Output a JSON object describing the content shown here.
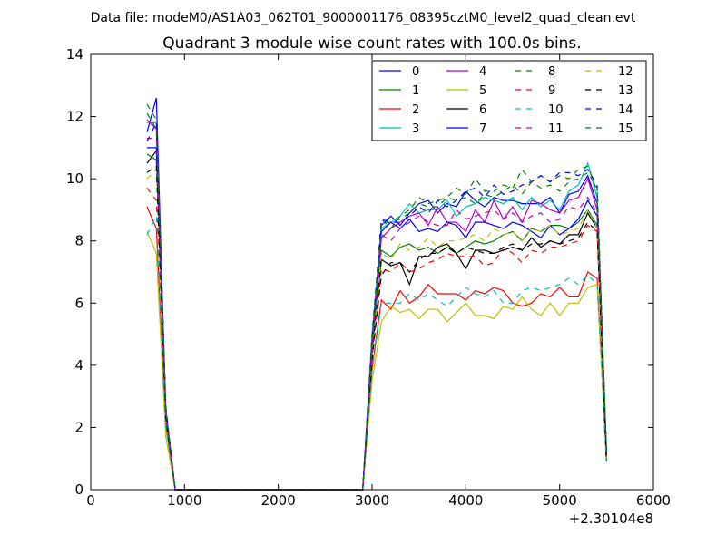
{
  "suptitle": "Data file: modeM0/AS1A03_062T01_9000001176_08395cztM0_level2_quad_clean.evt",
  "chart_data": {
    "type": "line",
    "title": "Quadrant 3 module wise count rates with 100.0s bins.",
    "xlabel": "",
    "ylabel": "",
    "x_offset_label": "+2.30104e8",
    "xlim": [
      0,
      6000
    ],
    "ylim": [
      0,
      14
    ],
    "xticks": [
      0,
      1000,
      2000,
      3000,
      4000,
      5000,
      6000
    ],
    "yticks": [
      0,
      2,
      4,
      6,
      8,
      10,
      12,
      14
    ],
    "grid": false,
    "legend_position": "top-right",
    "x": [
      600,
      700,
      800,
      900,
      1000,
      1100,
      1200,
      1300,
      1400,
      1500,
      1600,
      1700,
      1800,
      1900,
      2000,
      2100,
      2200,
      2300,
      2400,
      2500,
      2600,
      2700,
      2800,
      2900,
      3000,
      3100,
      3200,
      3300,
      3400,
      3500,
      3600,
      3700,
      3800,
      3900,
      4000,
      4100,
      4200,
      4300,
      4400,
      4500,
      4600,
      4700,
      4800,
      4900,
      5000,
      5100,
      5200,
      5300,
      5400,
      5500
    ],
    "series": [
      {
        "name": "0",
        "color": "#0000ff",
        "dash": "solid",
        "values": [
          11.5,
          12.6,
          2.5,
          0,
          0,
          0,
          0,
          0,
          0,
          0,
          0,
          0,
          0,
          0,
          0,
          0,
          0,
          0,
          0,
          0,
          0,
          0,
          0,
          0,
          4.7,
          8.5,
          8.8,
          8.5,
          8.9,
          9.2,
          9.3,
          8.9,
          9.2,
          9.1,
          9.6,
          9.3,
          9.1,
          9.4,
          9.3,
          9.3,
          9.2,
          9.2,
          9.2,
          9.4,
          8.9,
          9.5,
          9.6,
          10.1,
          9.2,
          1.2
        ]
      },
      {
        "name": "1",
        "color": "#008000",
        "dash": "solid",
        "values": [
          10.8,
          10.6,
          2.4,
          0,
          0,
          0,
          0,
          0,
          0,
          0,
          0,
          0,
          0,
          0,
          0,
          0,
          0,
          0,
          0,
          0,
          0,
          0,
          0,
          0,
          4.6,
          7.7,
          7.5,
          7.8,
          7.9,
          7.7,
          7.8,
          7.6,
          7.8,
          7.6,
          7.8,
          8.0,
          7.9,
          8.0,
          8.2,
          8.3,
          8.0,
          8.4,
          8.3,
          8.5,
          8.5,
          8.4,
          8.6,
          9.0,
          8.5,
          1.1
        ]
      },
      {
        "name": "2",
        "color": "#ff0000",
        "dash": "solid",
        "values": [
          9.1,
          8.4,
          2.1,
          0,
          0,
          0,
          0,
          0,
          0,
          0,
          0,
          0,
          0,
          0,
          0,
          0,
          0,
          0,
          0,
          0,
          0,
          0,
          0,
          0,
          3.9,
          6.1,
          5.8,
          6.4,
          6.0,
          6.2,
          6.6,
          6.3,
          6.3,
          6.3,
          6.1,
          6.4,
          6.3,
          6.5,
          6.4,
          6.0,
          5.9,
          6.0,
          6.3,
          6.2,
          6.5,
          6.2,
          6.2,
          7.0,
          6.8,
          1.0
        ]
      },
      {
        "name": "3",
        "color": "#00bfbf",
        "dash": "solid",
        "values": [
          11.8,
          11.8,
          2.6,
          0,
          0,
          0,
          0,
          0,
          0,
          0,
          0,
          0,
          0,
          0,
          0,
          0,
          0,
          0,
          0,
          0,
          0,
          0,
          0,
          0,
          5.0,
          8.4,
          8.6,
          8.8,
          9.2,
          8.9,
          9.0,
          9.0,
          9.3,
          8.8,
          9.1,
          9.2,
          9.4,
          9.3,
          9.2,
          9.4,
          9.0,
          9.4,
          9.1,
          9.3,
          9.0,
          9.6,
          9.8,
          10.5,
          9.4,
          1.3
        ]
      },
      {
        "name": "4",
        "color": "#bf00bf",
        "dash": "solid",
        "values": [
          11.9,
          11.6,
          2.6,
          0,
          0,
          0,
          0,
          0,
          0,
          0,
          0,
          0,
          0,
          0,
          0,
          0,
          0,
          0,
          0,
          0,
          0,
          0,
          0,
          0,
          4.8,
          8.1,
          8.4,
          8.6,
          8.8,
          8.9,
          8.5,
          9.1,
          8.6,
          8.6,
          8.3,
          9.0,
          8.6,
          9.3,
          8.7,
          9.1,
          8.6,
          9.3,
          9.2,
          9.0,
          8.9,
          9.3,
          9.4,
          10.0,
          9.0,
          1.2
        ]
      },
      {
        "name": "5",
        "color": "#bfbf00",
        "dash": "solid",
        "values": [
          8.3,
          7.6,
          1.7,
          0,
          0,
          0,
          0,
          0,
          0,
          0,
          0,
          0,
          0,
          0,
          0,
          0,
          0,
          0,
          0,
          0,
          0,
          0,
          0,
          0,
          3.5,
          5.4,
          5.9,
          5.7,
          5.8,
          5.5,
          5.8,
          5.8,
          5.4,
          5.7,
          6.0,
          5.6,
          5.6,
          5.5,
          5.9,
          5.8,
          6.2,
          5.8,
          5.6,
          6.0,
          5.6,
          6.0,
          6.0,
          6.5,
          6.6,
          0.9
        ]
      },
      {
        "name": "6",
        "color": "#000000",
        "dash": "solid",
        "values": [
          10.5,
          10.9,
          2.4,
          0,
          0,
          0,
          0,
          0,
          0,
          0,
          0,
          0,
          0,
          0,
          0,
          0,
          0,
          0,
          0,
          0,
          0,
          0,
          0,
          0,
          4.4,
          7.4,
          7.2,
          7.3,
          6.6,
          7.5,
          7.5,
          7.8,
          7.9,
          7.6,
          7.1,
          7.7,
          7.7,
          7.6,
          7.7,
          7.8,
          7.7,
          8.1,
          7.8,
          8.0,
          7.9,
          8.2,
          8.2,
          8.9,
          8.4,
          0.9
        ]
      },
      {
        "name": "7",
        "color": "#0000ff",
        "dash": "solid",
        "values": [
          11.0,
          11.0,
          2.5,
          0,
          0,
          0,
          0,
          0,
          0,
          0,
          0,
          0,
          0,
          0,
          0,
          0,
          0,
          0,
          0,
          0,
          0,
          0,
          0,
          0,
          4.7,
          8.3,
          8.6,
          8.4,
          8.7,
          8.3,
          8.4,
          8.3,
          8.6,
          8.5,
          8.1,
          8.6,
          8.6,
          8.5,
          8.4,
          8.6,
          8.5,
          8.3,
          8.1,
          8.5,
          8.2,
          8.4,
          8.7,
          9.3,
          8.8,
          1.1
        ]
      },
      {
        "name": "8",
        "color": "#008000",
        "dash": "dashed",
        "values": [
          12.4,
          11.9,
          2.7,
          0,
          0,
          0,
          0,
          0,
          0,
          0,
          0,
          0,
          0,
          0,
          0,
          0,
          0,
          0,
          0,
          0,
          0,
          0,
          0,
          0,
          5.0,
          8.7,
          8.4,
          8.8,
          9.0,
          9.4,
          9.2,
          9.3,
          9.4,
          9.7,
          9.5,
          10.0,
          9.6,
          9.6,
          9.8,
          9.7,
          10.3,
          9.9,
          10.1,
          9.9,
          10.1,
          10.0,
          10.3,
          10.4,
          9.6,
          1.3
        ]
      },
      {
        "name": "9",
        "color": "#ff0000",
        "dash": "dashed",
        "values": [
          9.7,
          9.3,
          2.2,
          0,
          0,
          0,
          0,
          0,
          0,
          0,
          0,
          0,
          0,
          0,
          0,
          0,
          0,
          0,
          0,
          0,
          0,
          0,
          0,
          0,
          4.2,
          7.1,
          7.0,
          7.3,
          7.0,
          7.1,
          7.3,
          7.4,
          7.6,
          7.5,
          7.5,
          7.5,
          7.2,
          7.3,
          7.8,
          7.6,
          7.3,
          7.7,
          7.6,
          7.8,
          7.8,
          7.9,
          8.0,
          8.5,
          8.3,
          1.0
        ]
      },
      {
        "name": "10",
        "color": "#00bfbf",
        "dash": "dashed",
        "values": [
          8.2,
          8.8,
          2.0,
          0,
          0,
          0,
          0,
          0,
          0,
          0,
          0,
          0,
          0,
          0,
          0,
          0,
          0,
          0,
          0,
          0,
          0,
          0,
          0,
          0,
          3.8,
          6.0,
          6.0,
          6.0,
          6.3,
          6.1,
          6.3,
          6.1,
          5.9,
          6.2,
          6.5,
          6.3,
          6.2,
          6.4,
          6.0,
          6.0,
          6.4,
          6.5,
          6.4,
          6.5,
          6.6,
          6.8,
          6.6,
          6.9,
          6.6,
          0.9
        ]
      },
      {
        "name": "11",
        "color": "#bf00bf",
        "dash": "dashed",
        "values": [
          11.3,
          11.3,
          2.5,
          0,
          0,
          0,
          0,
          0,
          0,
          0,
          0,
          0,
          0,
          0,
          0,
          0,
          0,
          0,
          0,
          0,
          0,
          0,
          0,
          0,
          4.6,
          8.2,
          8.0,
          8.4,
          8.6,
          8.8,
          8.6,
          8.5,
          8.5,
          9.0,
          8.7,
          8.8,
          8.9,
          9.0,
          8.7,
          8.9,
          8.6,
          8.8,
          8.9,
          8.6,
          8.7,
          9.1,
          9.0,
          9.4,
          8.9,
          1.1
        ]
      },
      {
        "name": "12",
        "color": "#bfbf00",
        "dash": "dashed",
        "values": [
          10.0,
          10.3,
          2.3,
          0,
          0,
          0,
          0,
          0,
          0,
          0,
          0,
          0,
          0,
          0,
          0,
          0,
          0,
          0,
          0,
          0,
          0,
          0,
          0,
          0,
          4.3,
          7.6,
          7.4,
          7.9,
          7.7,
          7.8,
          8.1,
          7.8,
          8.0,
          8.0,
          8.1,
          8.2,
          8.0,
          8.4,
          8.2,
          8.3,
          8.0,
          8.4,
          8.3,
          8.5,
          8.2,
          8.3,
          8.4,
          9.0,
          8.4,
          1.0
        ]
      },
      {
        "name": "13",
        "color": "#000000",
        "dash": "dashed",
        "values": [
          10.2,
          10.4,
          2.3,
          0,
          0,
          0,
          0,
          0,
          0,
          0,
          0,
          0,
          0,
          0,
          0,
          0,
          0,
          0,
          0,
          0,
          0,
          0,
          0,
          0,
          4.2,
          6.9,
          7.3,
          7.3,
          7.0,
          7.4,
          7.6,
          7.6,
          7.8,
          7.6,
          7.8,
          7.7,
          7.6,
          7.6,
          7.8,
          7.9,
          7.7,
          7.9,
          7.9,
          8.0,
          7.9,
          8.0,
          8.1,
          8.6,
          8.3,
          0.9
        ]
      },
      {
        "name": "14",
        "color": "#0000ff",
        "dash": "dashed",
        "values": [
          11.2,
          11.8,
          2.6,
          0,
          0,
          0,
          0,
          0,
          0,
          0,
          0,
          0,
          0,
          0,
          0,
          0,
          0,
          0,
          0,
          0,
          0,
          0,
          0,
          0,
          4.8,
          8.7,
          8.6,
          8.6,
          8.8,
          9.1,
          8.9,
          9.3,
          9.1,
          9.3,
          9.6,
          9.7,
          9.4,
          9.8,
          9.5,
          9.6,
          9.8,
          9.9,
          10.1,
          9.9,
          10.2,
          10.2,
          10.1,
          10.3,
          9.8,
          1.2
        ]
      },
      {
        "name": "15",
        "color": "#008000",
        "dash": "dashed",
        "values": [
          12.1,
          11.6,
          2.6,
          0,
          0,
          0,
          0,
          0,
          0,
          0,
          0,
          0,
          0,
          0,
          0,
          0,
          0,
          0,
          0,
          0,
          0,
          0,
          0,
          0,
          4.7,
          8.6,
          8.6,
          8.7,
          8.9,
          9.2,
          9.1,
          9.1,
          9.4,
          9.3,
          9.4,
          9.2,
          9.5,
          9.4,
          9.6,
          9.8,
          9.5,
          9.9,
          9.7,
          9.8,
          9.6,
          9.9,
          10.0,
          10.2,
          9.7,
          1.2
        ]
      }
    ]
  }
}
